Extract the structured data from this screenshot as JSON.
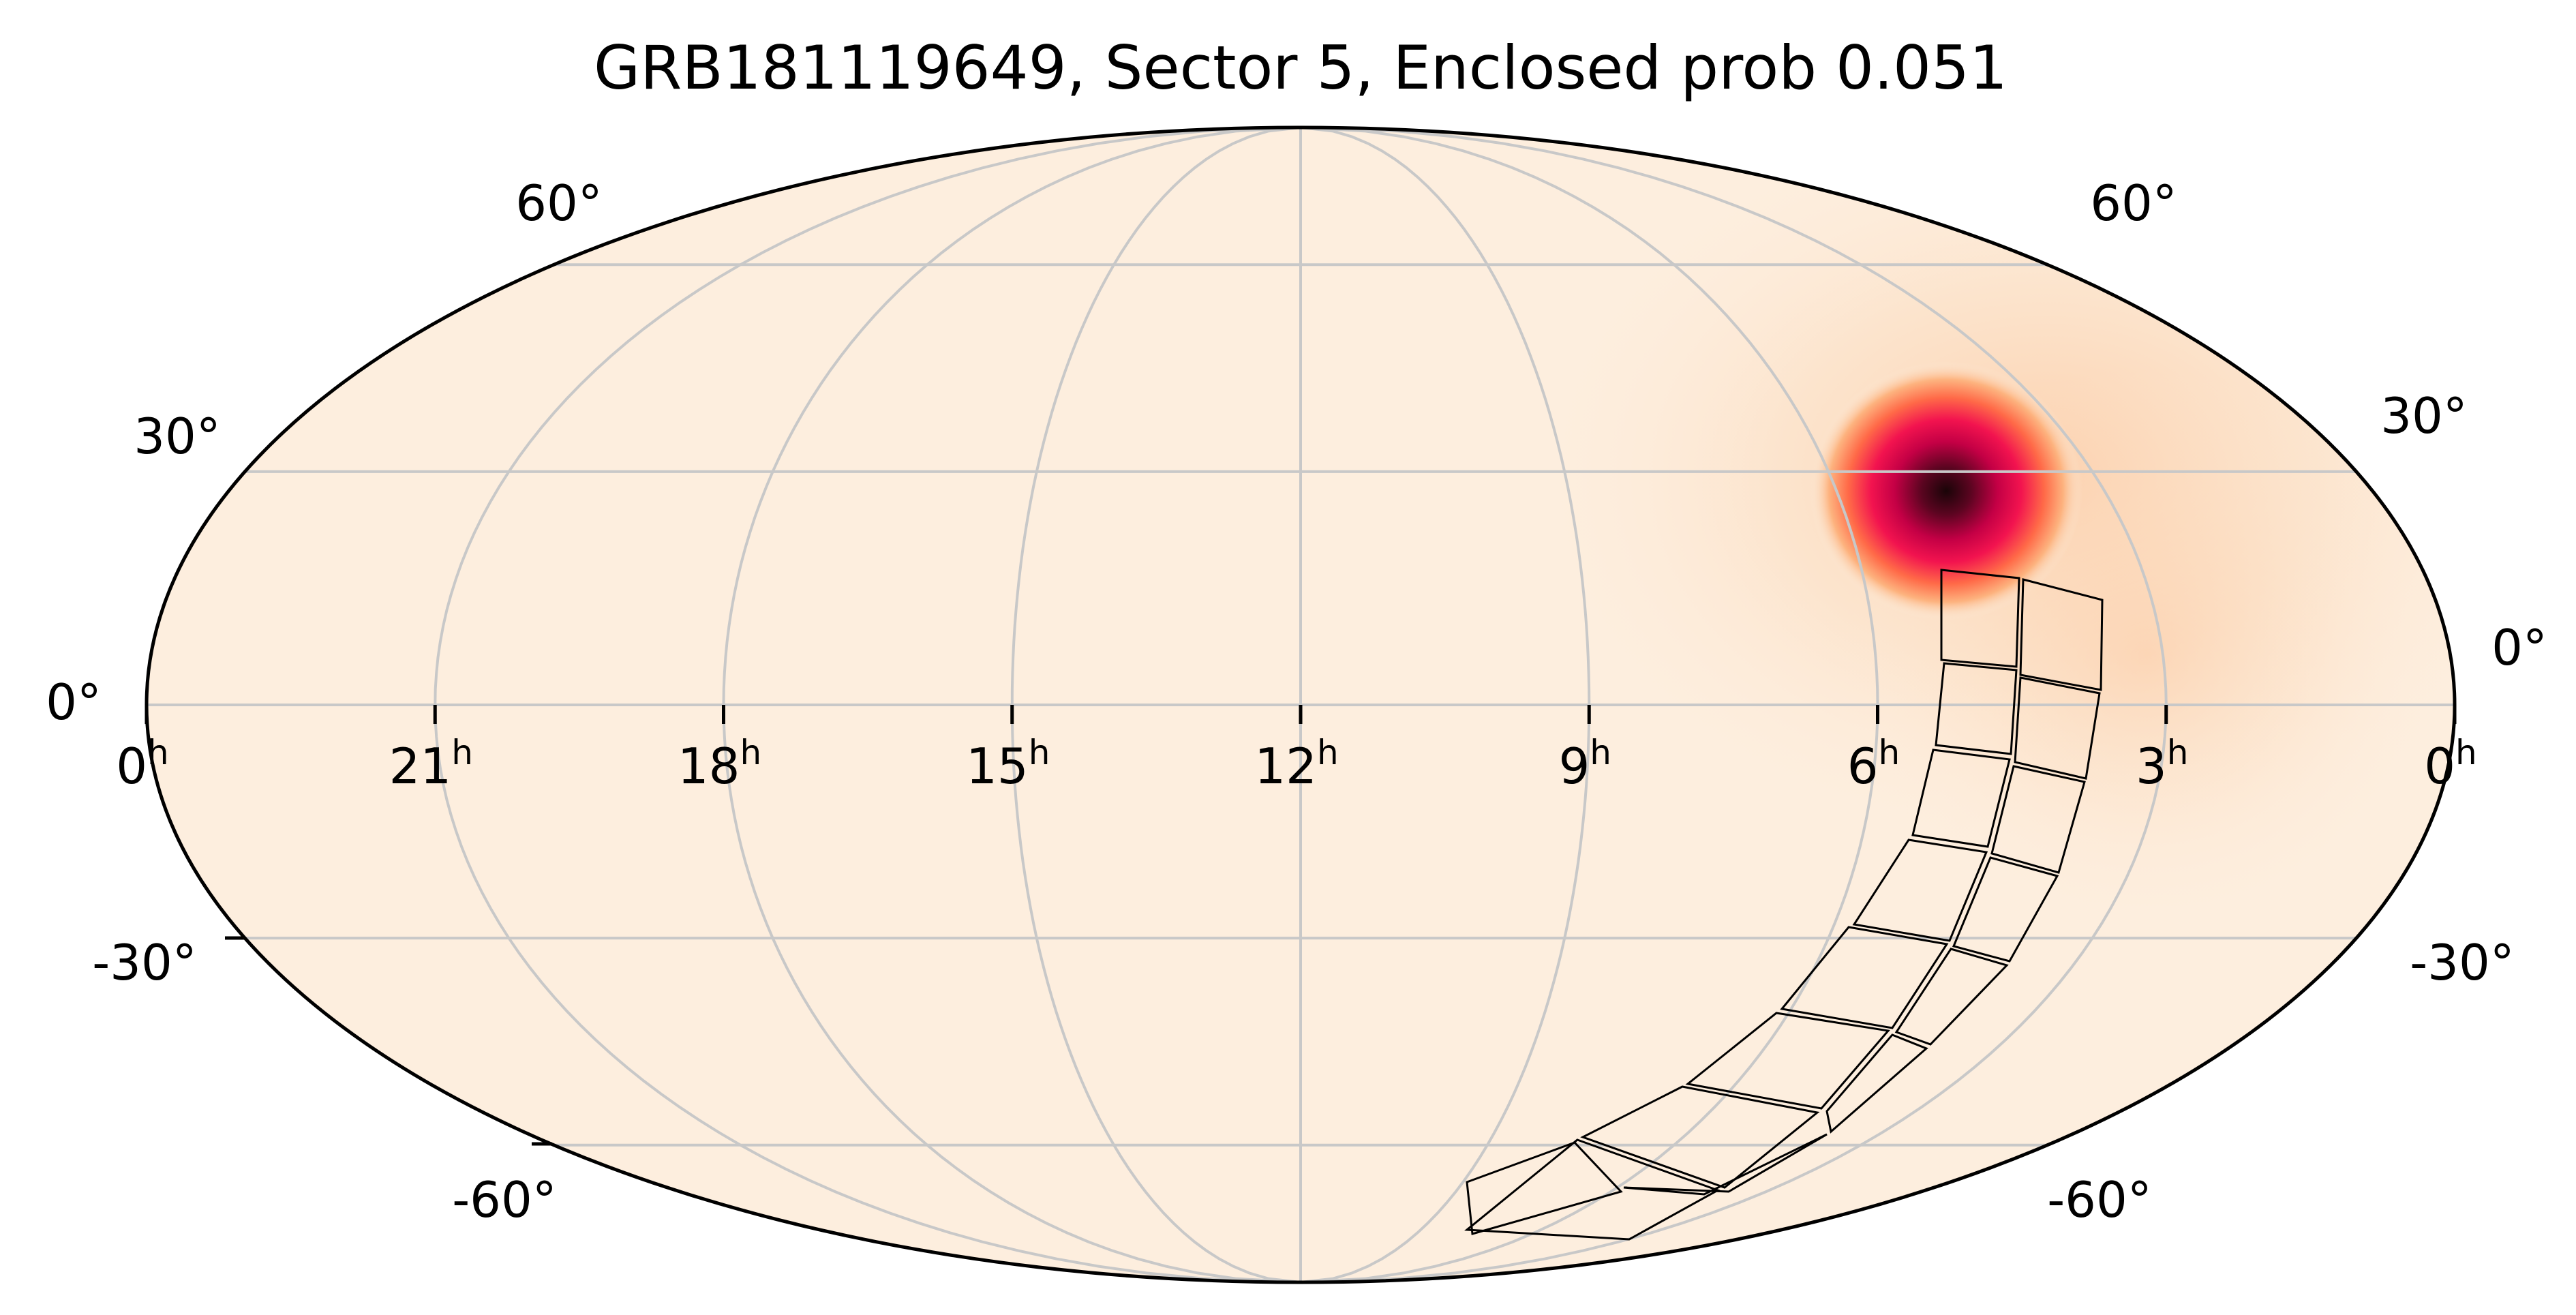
{
  "title": "GRB181119649, Sector 5, Enclosed prob 0.051",
  "ra_tick_labels": [
    {
      "hours": 0,
      "label": "0",
      "unit": "h"
    },
    {
      "hours": 21,
      "label": "21",
      "unit": "h"
    },
    {
      "hours": 18,
      "label": "18",
      "unit": "h"
    },
    {
      "hours": 15,
      "label": "15",
      "unit": "h"
    },
    {
      "hours": 12,
      "label": "12",
      "unit": "h"
    },
    {
      "hours": 9,
      "label": "9",
      "unit": "h"
    },
    {
      "hours": 6,
      "label": "6",
      "unit": "h"
    },
    {
      "hours": 3,
      "label": "3",
      "unit": "h"
    },
    {
      "hours": 0,
      "label": "0",
      "unit": "h"
    }
  ],
  "dec_tick_labels": {
    "left": [
      {
        "dec": 60,
        "label": "60°"
      },
      {
        "dec": 30,
        "label": "30°"
      },
      {
        "dec": 0,
        "label": "0°"
      },
      {
        "dec": -30,
        "label": "-30°"
      },
      {
        "dec": -60,
        "label": "-60°"
      }
    ],
    "right": [
      {
        "dec": 60,
        "label": "60°"
      },
      {
        "dec": 30,
        "label": "30°"
      },
      {
        "dec": 0,
        "label": "0°"
      },
      {
        "dec": -30,
        "label": "-30°"
      },
      {
        "dec": -60,
        "label": "-60°"
      }
    ]
  },
  "projection": "mollweide",
  "grid": true,
  "colors": {
    "background": "#fdeede",
    "grid": "#c8c8c8",
    "footprint": "#000000",
    "prob_peak": "#2a0a0e",
    "prob_high": "#e8004f",
    "prob_mid": "#ff7a4a",
    "prob_low": "#fdd5b0"
  },
  "probability_peak": {
    "ra_hours": 5.4,
    "dec": 23
  },
  "tess_sector": 5,
  "tess_camera_ccd_count": 16
}
